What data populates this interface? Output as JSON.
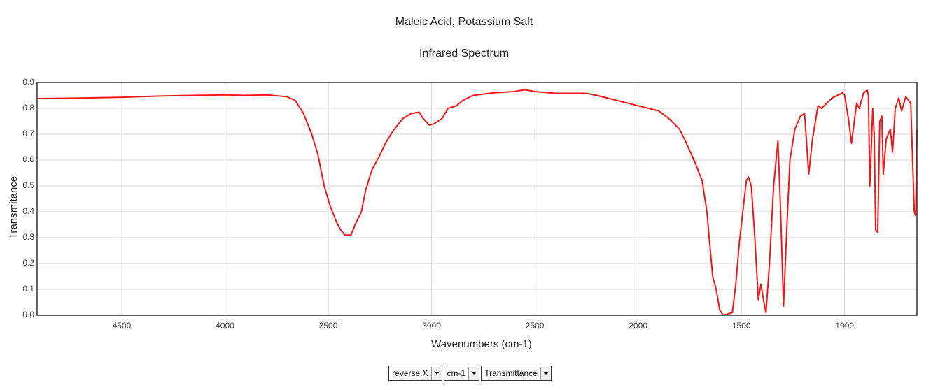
{
  "chart_data": {
    "type": "line",
    "title": "Maleic Acid, Potassium Salt",
    "subtitle": "Infrared Spectrum",
    "x_label": "Wavenumbers (cm-1)",
    "y_label": "Transmitance",
    "xlim": [
      4910,
      650
    ],
    "ylim": [
      0,
      0.9
    ],
    "xticks": [
      4500,
      4000,
      3500,
      3000,
      2500,
      2000,
      1500,
      1000
    ],
    "yticks": [
      {
        "value": 0,
        "label": "0.0"
      },
      0.1,
      0.2,
      0.3,
      0.4,
      0.5,
      0.6,
      0.7,
      0.8,
      0.9
    ],
    "grid": true,
    "reverse_x": true,
    "x": [
      4910,
      4700,
      4500,
      4300,
      4000,
      3900,
      3800,
      3700,
      3660,
      3620,
      3580,
      3550,
      3520,
      3490,
      3460,
      3440,
      3420,
      3390,
      3370,
      3340,
      3320,
      3290,
      3250,
      3220,
      3180,
      3140,
      3100,
      3060,
      3040,
      3010,
      2990,
      2950,
      2920,
      2880,
      2850,
      2800,
      2700,
      2600,
      2550,
      2500,
      2400,
      2250,
      2200,
      2100,
      2000,
      1950,
      1900,
      1850,
      1800,
      1775,
      1724,
      1690,
      1667,
      1656,
      1639,
      1622,
      1605,
      1588,
      1544,
      1527,
      1510,
      1493,
      1476,
      1466,
      1452,
      1435,
      1418,
      1405,
      1391,
      1381,
      1364,
      1344,
      1323,
      1310,
      1296,
      1282,
      1265,
      1241,
      1214,
      1194,
      1174,
      1156,
      1129,
      1112,
      1061,
      1010,
      1000,
      980,
      967,
      942,
      929,
      908,
      891,
      885,
      878,
      864,
      857,
      850,
      840,
      830,
      820,
      813,
      799,
      779,
      768,
      755,
      738,
      724,
      704,
      680,
      663,
      656,
      650
    ],
    "series": [
      {
        "name": "Transmitance",
        "color": "#f01818",
        "values": [
          0.838,
          0.84,
          0.843,
          0.848,
          0.852,
          0.85,
          0.852,
          0.845,
          0.83,
          0.78,
          0.7,
          0.62,
          0.5,
          0.42,
          0.36,
          0.33,
          0.31,
          0.31,
          0.35,
          0.4,
          0.48,
          0.56,
          0.62,
          0.67,
          0.72,
          0.76,
          0.78,
          0.785,
          0.76,
          0.735,
          0.74,
          0.76,
          0.8,
          0.81,
          0.83,
          0.85,
          0.86,
          0.865,
          0.872,
          0.865,
          0.858,
          0.858,
          0.85,
          0.83,
          0.81,
          0.8,
          0.79,
          0.76,
          0.72,
          0.68,
          0.59,
          0.52,
          0.4,
          0.3,
          0.15,
          0.1,
          0.02,
          0.0,
          0.01,
          0.12,
          0.28,
          0.4,
          0.52,
          0.535,
          0.5,
          0.3,
          0.06,
          0.12,
          0.05,
          0.01,
          0.2,
          0.5,
          0.675,
          0.4,
          0.035,
          0.3,
          0.6,
          0.72,
          0.77,
          0.78,
          0.545,
          0.68,
          0.81,
          0.8,
          0.84,
          0.86,
          0.85,
          0.75,
          0.665,
          0.82,
          0.8,
          0.86,
          0.87,
          0.85,
          0.5,
          0.8,
          0.7,
          0.33,
          0.32,
          0.75,
          0.77,
          0.545,
          0.68,
          0.72,
          0.63,
          0.8,
          0.84,
          0.79,
          0.845,
          0.82,
          0.4,
          0.385,
          0.72
        ]
      }
    ]
  },
  "controls": [
    "reverse X",
    "cm-1",
    "Transmittance"
  ]
}
